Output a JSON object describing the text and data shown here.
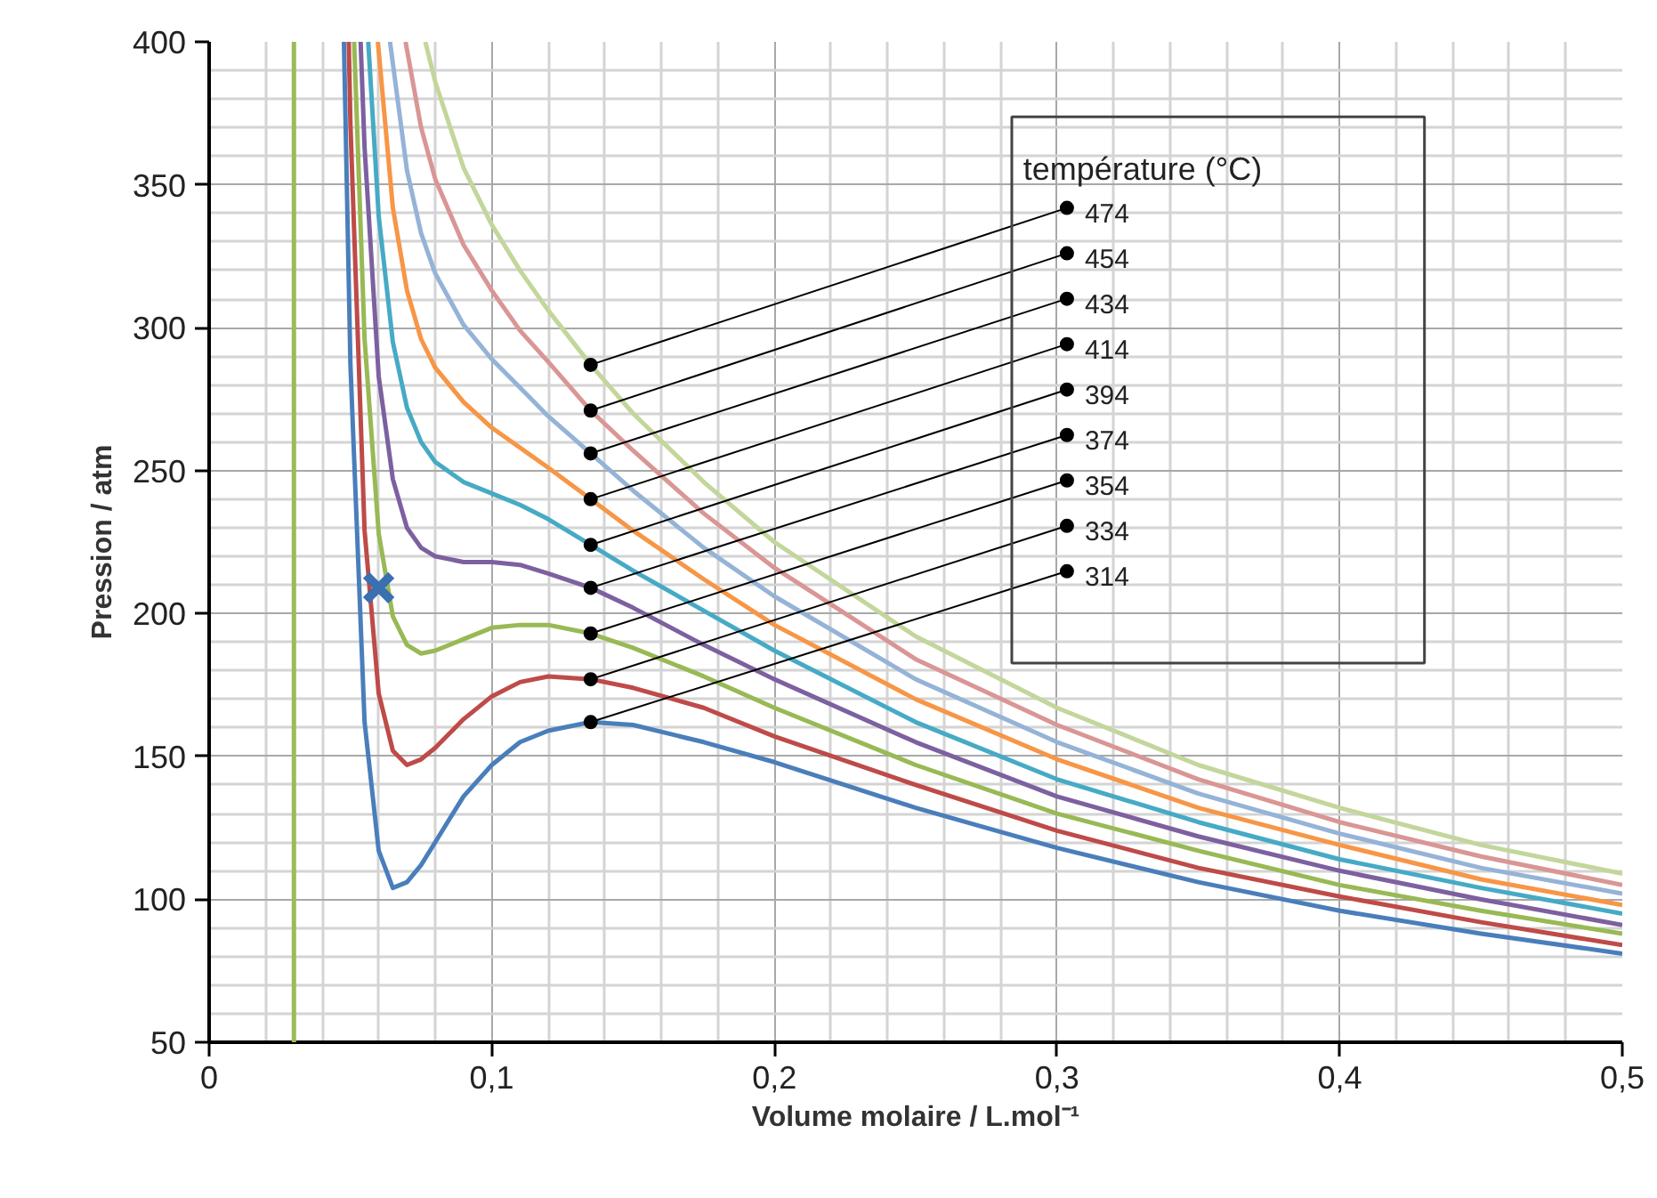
{
  "chart_data": {
    "type": "line",
    "xlabel": "Volume molaire / L.mol⁻¹",
    "ylabel": "Pression / atm",
    "legend_title": "température (°C)",
    "xlim": [
      0,
      0.5
    ],
    "ylim": [
      50,
      400
    ],
    "xticks": [
      0,
      {
        "value": 0.1,
        "label": "0,1"
      },
      {
        "value": 0.2,
        "label": "0,2"
      },
      {
        "value": 0.3,
        "label": "0,3"
      },
      {
        "value": 0.4,
        "label": "0,4"
      },
      {
        "value": 0.5,
        "label": "0,5"
      }
    ],
    "yticks": [
      50,
      100,
      150,
      200,
      250,
      300,
      350,
      400
    ],
    "grid": true,
    "line_style": "solid",
    "marker": "none",
    "legend": "top right",
    "series": [
      {
        "name": "314",
        "color": "#4a7ebb",
        "x": [
          0.0477,
          0.05,
          0.055,
          0.06,
          0.065,
          0.07,
          0.075,
          0.08,
          0.09,
          0.1,
          0.11,
          0.12,
          0.135,
          0.15,
          0.175,
          0.2,
          0.25,
          0.3,
          0.35,
          0.4,
          0.45,
          0.5
        ],
        "values": [
          400,
          287,
          162,
          117,
          104,
          106,
          112,
          120,
          136,
          147,
          155,
          159,
          162,
          161,
          155,
          148,
          132,
          118,
          106,
          96,
          88,
          81
        ]
      },
      {
        "name": "334",
        "color": "#be4b48",
        "x": [
          0.0494,
          0.05,
          0.055,
          0.06,
          0.065,
          0.07,
          0.075,
          0.08,
          0.09,
          0.1,
          0.11,
          0.12,
          0.135,
          0.15,
          0.175,
          0.2,
          0.25,
          0.3,
          0.35,
          0.4,
          0.45,
          0.5
        ],
        "values": [
          400,
          371,
          229,
          172,
          152,
          147,
          149,
          153,
          163,
          171,
          176,
          178,
          177,
          174,
          167,
          157,
          140,
          124,
          111,
          101,
          92,
          84
        ]
      },
      {
        "name": "354",
        "color": "#98b954",
        "x": [
          0.0513,
          0.055,
          0.06,
          0.065,
          0.07,
          0.075,
          0.08,
          0.09,
          0.1,
          0.11,
          0.12,
          0.135,
          0.15,
          0.175,
          0.2,
          0.25,
          0.3,
          0.35,
          0.4,
          0.45,
          0.5
        ],
        "values": [
          400,
          296,
          228,
          199,
          189,
          186,
          187,
          191,
          195,
          196,
          196,
          193,
          188,
          178,
          167,
          147,
          130,
          117,
          105,
          96,
          88
        ]
      },
      {
        "name": "374",
        "color": "#7d60a0",
        "x": [
          0.0536,
          0.055,
          0.06,
          0.065,
          0.07,
          0.075,
          0.08,
          0.09,
          0.1,
          0.11,
          0.12,
          0.135,
          0.15,
          0.175,
          0.2,
          0.25,
          0.3,
          0.35,
          0.4,
          0.45,
          0.5
        ],
        "values": [
          400,
          363,
          283,
          247,
          230,
          223,
          220,
          218,
          218,
          217,
          214,
          209,
          202,
          189,
          177,
          155,
          136,
          122,
          110,
          100,
          91
        ]
      },
      {
        "name": "394",
        "color": "#46aac5",
        "x": [
          0.0563,
          0.06,
          0.065,
          0.07,
          0.075,
          0.08,
          0.09,
          0.1,
          0.11,
          0.12,
          0.135,
          0.15,
          0.175,
          0.2,
          0.25,
          0.3,
          0.35,
          0.4,
          0.45,
          0.5
        ],
        "values": [
          400,
          339,
          295,
          272,
          260,
          253,
          246,
          242,
          238,
          233,
          224,
          215,
          201,
          187,
          162,
          142,
          127,
          114,
          104,
          95
        ]
      },
      {
        "name": "414",
        "color": "#f79646",
        "x": [
          0.0597,
          0.065,
          0.07,
          0.075,
          0.08,
          0.09,
          0.1,
          0.11,
          0.12,
          0.135,
          0.15,
          0.175,
          0.2,
          0.25,
          0.3,
          0.35,
          0.4,
          0.45,
          0.5
        ],
        "values": [
          400,
          342,
          313,
          296,
          286,
          274,
          265,
          258,
          251,
          240,
          229,
          212,
          196,
          170,
          149,
          132,
          119,
          107,
          98
        ]
      },
      {
        "name": "434",
        "color": "#95b3d7",
        "x": [
          0.064,
          0.07,
          0.075,
          0.08,
          0.09,
          0.1,
          0.11,
          0.12,
          0.135,
          0.15,
          0.175,
          0.2,
          0.25,
          0.3,
          0.35,
          0.4,
          0.45,
          0.5
        ],
        "values": [
          400,
          355,
          333,
          319,
          301,
          289,
          279,
          269,
          256,
          243,
          223,
          206,
          177,
          155,
          137,
          123,
          111,
          102
        ]
      },
      {
        "name": "454",
        "color": "#d99694",
        "x": [
          0.0695,
          0.075,
          0.08,
          0.09,
          0.1,
          0.11,
          0.12,
          0.135,
          0.15,
          0.175,
          0.2,
          0.25,
          0.3,
          0.35,
          0.4,
          0.45,
          0.5
        ],
        "values": [
          400,
          370,
          352,
          329,
          313,
          299,
          288,
          271,
          257,
          235,
          216,
          184,
          161,
          142,
          127,
          115,
          105
        ]
      },
      {
        "name": "474",
        "color": "#c3d69b",
        "x": [
          0.0765,
          0.08,
          0.09,
          0.1,
          0.11,
          0.12,
          0.135,
          0.15,
          0.175,
          0.2,
          0.25,
          0.3,
          0.35,
          0.4,
          0.45,
          0.5
        ],
        "values": [
          400,
          386,
          356,
          336,
          320,
          306,
          287,
          270,
          246,
          225,
          192,
          167,
          147,
          132,
          119,
          109
        ]
      },
      {
        "type": "scatter",
        "marker": "cross",
        "color": "#3a6fb0",
        "x": [
          0.06
        ],
        "values": [
          209
        ]
      }
    ],
    "ref_lines": [
      {
        "axis": "x",
        "value": 0.03,
        "color": "#9bbb59"
      }
    ]
  }
}
